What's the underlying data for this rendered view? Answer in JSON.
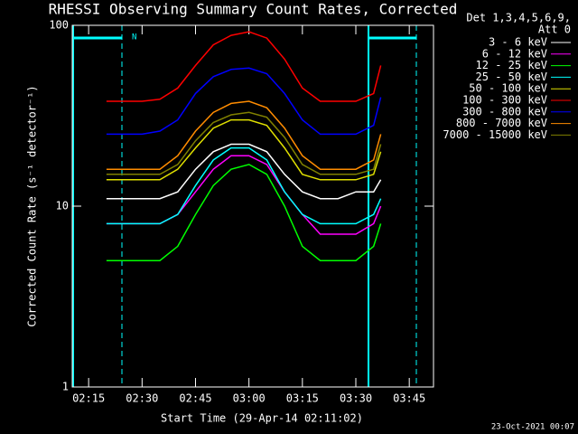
{
  "chart_data": {
    "type": "line",
    "title": "RHESSI Observing Summary Count Rates, Corrected",
    "xlabel": "Start Time (29-Apr-14 02:11:02)",
    "ylabel": "Corrected Count Rate (s⁻¹ detector⁻¹)",
    "legend_header": [
      "Det 1,3,4,5,6,9,",
      "Att 0"
    ],
    "annotation": "N",
    "footer": "23-Oct-2021 00:07",
    "log_y": true,
    "xlim": [
      10.4,
      111.8
    ],
    "ylim": [
      1,
      100
    ],
    "yticks": [
      1,
      10,
      100
    ],
    "xticks": [
      {
        "value": 15,
        "label": "02:15"
      },
      {
        "value": 30,
        "label": "02:30"
      },
      {
        "value": 45,
        "label": "02:45"
      },
      {
        "value": 60,
        "label": "03:00"
      },
      {
        "value": 75,
        "label": "03:15"
      },
      {
        "value": 90,
        "label": "03:30"
      },
      {
        "value": 105,
        "label": "03:45"
      }
    ],
    "x": [
      20,
      25,
      30,
      35,
      40,
      45,
      50,
      55,
      60,
      65,
      70,
      75,
      80,
      85,
      90,
      95,
      97
    ],
    "series": [
      {
        "name": "3 - 6 keV",
        "color": "#ffffff",
        "values": [
          11,
          11,
          11,
          11,
          12,
          16,
          20,
          22,
          22,
          20,
          15,
          12,
          11,
          11,
          12,
          12,
          14
        ]
      },
      {
        "name": "6 - 12 keV",
        "color": "#ff00ff",
        "values": [
          8,
          8,
          8,
          8,
          9,
          12,
          16,
          19,
          19,
          17,
          12,
          9,
          7,
          7,
          7,
          8,
          10
        ]
      },
      {
        "name": "12 - 25 keV",
        "color": "#00ff00",
        "values": [
          5,
          5,
          5,
          5,
          6,
          9,
          13,
          16,
          17,
          15,
          10,
          6,
          5,
          5,
          5,
          6,
          8
        ]
      },
      {
        "name": "25 - 50 keV",
        "color": "#00ffff",
        "values": [
          8,
          8,
          8,
          8,
          9,
          13,
          18,
          21,
          21,
          18,
          12,
          9,
          8,
          8,
          8,
          9,
          11
        ]
      },
      {
        "name": "50 - 100 keV",
        "color": "#e0e000",
        "values": [
          14,
          14,
          14,
          14,
          16,
          21,
          27,
          30,
          30,
          28,
          21,
          15,
          14,
          14,
          14,
          15,
          20
        ]
      },
      {
        "name": "100 - 300 keV",
        "color": "#ff0000",
        "values": [
          38,
          38,
          38,
          39,
          45,
          60,
          78,
          88,
          92,
          85,
          65,
          45,
          38,
          38,
          38,
          42,
          60
        ]
      },
      {
        "name": "300 - 800 keV",
        "color": "#0000ff",
        "values": [
          25,
          25,
          25,
          26,
          30,
          42,
          52,
          57,
          58,
          54,
          42,
          30,
          25,
          25,
          25,
          28,
          40
        ]
      },
      {
        "name": "800 - 7000 keV",
        "color": "#ff8c00",
        "values": [
          16,
          16,
          16,
          16,
          19,
          26,
          33,
          37,
          38,
          35,
          27,
          19,
          16,
          16,
          16,
          18,
          25
        ]
      },
      {
        "name": "7000 - 15000 keV",
        "color": "#808000",
        "values": [
          15,
          15,
          15,
          15,
          17,
          23,
          29,
          32,
          33,
          31,
          24,
          17,
          15,
          15,
          15,
          16,
          22
        ]
      }
    ]
  }
}
